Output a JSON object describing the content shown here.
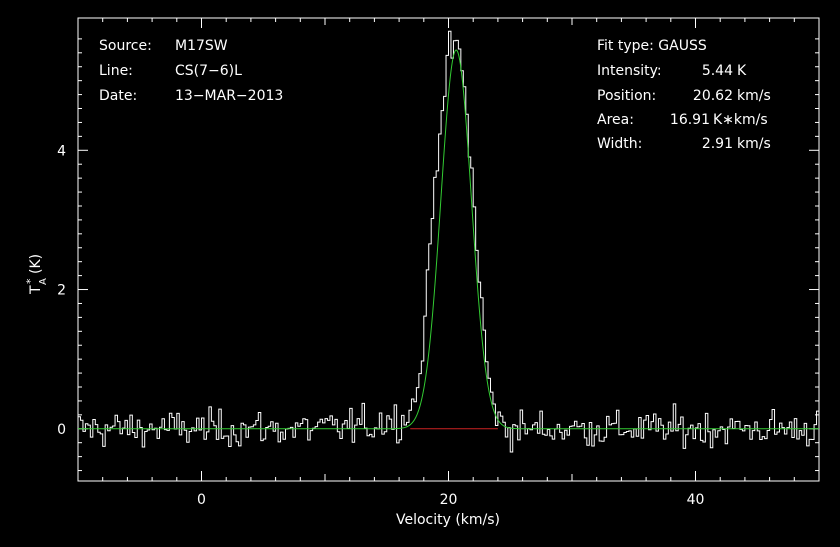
{
  "chart_data": {
    "type": "line",
    "xlabel": "Velocity (km/s)",
    "ylabel_main": "T",
    "ylabel_sub": "A",
    "ylabel_sup": "*",
    "ylabel_unit": "(K)",
    "xlim": [
      -10,
      50
    ],
    "ylim": [
      -0.75,
      5.9
    ],
    "x_ticks": [
      0,
      20,
      40
    ],
    "y_ticks": [
      0,
      2,
      4
    ],
    "x_tick_labels": [
      "0",
      "20",
      "40"
    ],
    "y_tick_labels": [
      "0",
      "2",
      "4"
    ],
    "channel_width_kms": 0.2,
    "series": [
      {
        "role": "spectrum",
        "color": "#ffffff",
        "style": "histogram",
        "x": [
          -10,
          10,
          14,
          15,
          16,
          16.5,
          17,
          17.5,
          18,
          18.5,
          19,
          19.5,
          20,
          20.5,
          21,
          21.5,
          22,
          22.5,
          23,
          23.5,
          24,
          24.5,
          25,
          30,
          40,
          50
        ],
        "values": [
          0.0,
          0.0,
          0.05,
          0.15,
          0.1,
          0.2,
          0.3,
          0.55,
          1.3,
          2.6,
          3.8,
          4.7,
          5.3,
          5.55,
          5.3,
          4.5,
          3.4,
          2.2,
          1.1,
          0.45,
          0.15,
          0.05,
          0.0,
          0.0,
          0.0,
          0.0
        ],
        "noise_rms": 0.13
      },
      {
        "role": "gaussian-fit",
        "color": "#33cc33",
        "model": "gaussian",
        "amplitude": 5.44,
        "center": 20.62,
        "fwhm": 2.91
      },
      {
        "role": "baseline",
        "color": "#cc2222",
        "x": [
          16.9,
          24.0
        ],
        "values": [
          0,
          0
        ]
      }
    ]
  },
  "info_left": {
    "source_label": "Source:",
    "source_value": "M17SW",
    "line_label": "Line:",
    "line_value": "CS(7−6)L",
    "date_label": "Date:",
    "date_value": "13−MAR−2013"
  },
  "info_right": {
    "fit_type": "Fit type: GAUSS",
    "intensity_label": "Intensity:",
    "intensity_value": "5.44",
    "intensity_unit": "K",
    "position_label": "Position:",
    "position_value": "20.62",
    "position_unit": "km/s",
    "area_label": "Area:",
    "area_value": "16.91",
    "area_unit": "K∗km/s",
    "width_label": "Width:",
    "width_value": "2.91",
    "width_unit": "km/s"
  }
}
